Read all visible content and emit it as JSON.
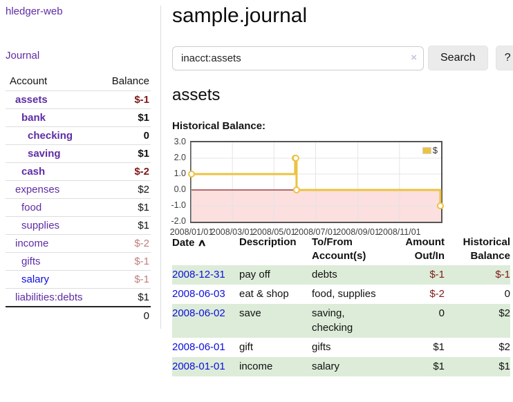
{
  "app": {
    "brand": "hledger-web",
    "nav": {
      "journal": "Journal"
    }
  },
  "sidebar": {
    "header": {
      "account": "Account",
      "balance": "Balance"
    },
    "accounts": [
      {
        "name": "assets",
        "balance": "$-1",
        "indent": 0,
        "bold": true,
        "link_color": "purple"
      },
      {
        "name": "bank",
        "balance": "$1",
        "indent": 1,
        "bold": true,
        "link_color": "purple"
      },
      {
        "name": "checking",
        "balance": "0",
        "indent": 2,
        "bold": true,
        "link_color": "purple"
      },
      {
        "name": "saving",
        "balance": "$1",
        "indent": 2,
        "bold": true,
        "link_color": "purple"
      },
      {
        "name": "cash",
        "balance": "$-2",
        "indent": 1,
        "bold": true,
        "link_color": "purple"
      },
      {
        "name": "expenses",
        "balance": "$2",
        "indent": 0,
        "bold": false,
        "link_color": "purple"
      },
      {
        "name": "food",
        "balance": "$1",
        "indent": 1,
        "bold": false,
        "link_color": "purple"
      },
      {
        "name": "supplies",
        "balance": "$1",
        "indent": 1,
        "bold": false,
        "link_color": "purple"
      },
      {
        "name": "income",
        "balance": "$-2",
        "indent": 0,
        "bold": false,
        "link_color": "purple"
      },
      {
        "name": "gifts",
        "balance": "$-1",
        "indent": 1,
        "bold": false,
        "link_color": "purple"
      },
      {
        "name": "salary",
        "balance": "$-1",
        "indent": 1,
        "bold": false,
        "link_color": "blue"
      },
      {
        "name": "liabilities:debts",
        "balance": "$1",
        "indent": 0,
        "bold": false,
        "link_color": "purple"
      }
    ],
    "total": "0"
  },
  "main": {
    "title": "sample.journal",
    "search": {
      "value": "inacct:assets",
      "clear_icon": "×",
      "button": "Search",
      "help": "?"
    },
    "account_heading": "assets",
    "section_label": "Historical Balance:"
  },
  "chart_data": {
    "type": "line",
    "step": true,
    "title": "Historical Balance",
    "series": [
      {
        "name": "$",
        "color": "#edc240",
        "points": [
          [
            "2008-01-01",
            1
          ],
          [
            "2008-06-01",
            2
          ],
          [
            "2008-06-02",
            2
          ],
          [
            "2008-06-03",
            0
          ],
          [
            "2008-12-31",
            -1
          ]
        ]
      }
    ],
    "x_range": [
      "2008-01-01",
      "2009-01-01"
    ],
    "x_ticks": [
      {
        "date": "2008-01-01",
        "label": "2008/01/01"
      },
      {
        "date": "2008-03-01",
        "label": "2008/03/01"
      },
      {
        "date": "2008-05-01",
        "label": "2008/05/01"
      },
      {
        "date": "2008-07-01",
        "label": "2008/07/01"
      },
      {
        "date": "2008-09-01",
        "label": "2008/09/01"
      },
      {
        "date": "2008-11-01",
        "label": "2008/11/01"
      }
    ],
    "y_ticks": [
      {
        "value": 3,
        "label": "3.0"
      },
      {
        "value": 2,
        "label": "2.0"
      },
      {
        "value": 1,
        "label": "1.0"
      },
      {
        "value": 0,
        "label": "0.0"
      },
      {
        "value": -1,
        "label": "-1.0"
      },
      {
        "value": -2,
        "label": "-2.0"
      }
    ],
    "ylim": [
      -2,
      3
    ],
    "legend": {
      "label": "$",
      "position": "top-right"
    },
    "negative_region": {
      "from": -2,
      "to": 0,
      "color": "#fcdfdf"
    },
    "zero_line_color": "#8b1a1a",
    "grid": true
  },
  "register": {
    "headers": {
      "date": "Date",
      "sort_icon": "∧",
      "description": "Description",
      "accounts": "To/From Account(s)",
      "amount": "Amount Out/In",
      "balance": "Historical Balance"
    },
    "rows": [
      {
        "date": "2008-12-31",
        "description": "pay off",
        "accounts": "debts",
        "amount": "$-1",
        "balance": "$-1",
        "highlight": true
      },
      {
        "date": "2008-06-03",
        "description": "eat & shop",
        "accounts": "food, supplies",
        "amount": "$-2",
        "balance": "0",
        "highlight": false
      },
      {
        "date": "2008-06-02",
        "description": "save",
        "accounts": "saving,\nchecking",
        "amount": "0",
        "balance": "$2",
        "highlight": true
      },
      {
        "date": "2008-06-01",
        "description": "gift",
        "accounts": "gifts",
        "amount": "$1",
        "balance": "$2",
        "highlight": false
      },
      {
        "date": "2008-01-01",
        "description": "income",
        "accounts": "salary",
        "amount": "$1",
        "balance": "$1",
        "highlight": true
      }
    ]
  },
  "colors": {
    "accent_purple": "#5e2ca5",
    "link_blue": "#0d0ddd",
    "negative": "#801818",
    "negative_muted": "#c17d7d",
    "row_highlight": "#dcecd8",
    "chart_line": "#edc240"
  }
}
